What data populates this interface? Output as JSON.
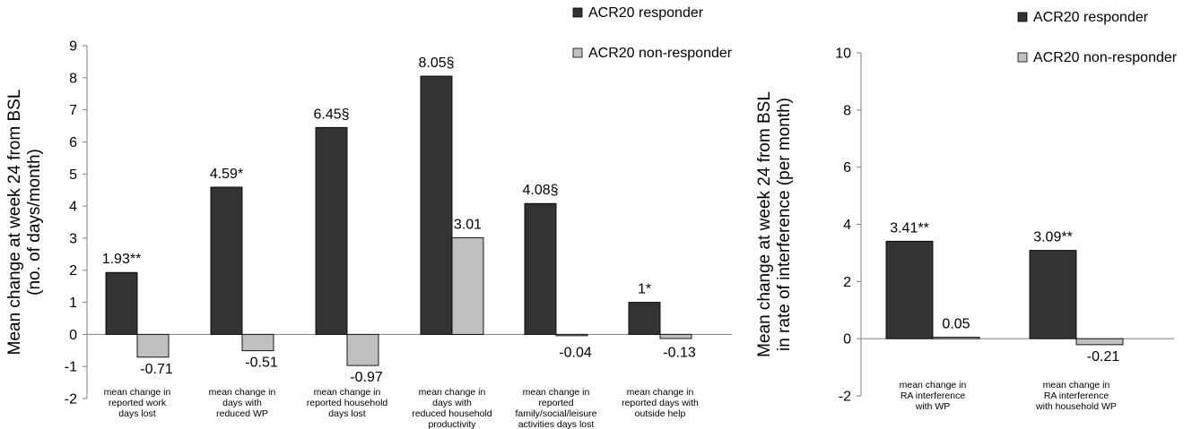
{
  "colors": {
    "responder": "#333333",
    "nonresponder": "#c0c0c0",
    "axis": "#7f7f7f"
  },
  "legend": {
    "responder": "ACR20 responder",
    "nonresponder": "ACR20 non-responder"
  },
  "chart_data": [
    {
      "type": "bar",
      "ylabel": [
        "Mean change at week 24 from BSL",
        "(no. of days/month)"
      ],
      "ylim": [
        -2,
        9
      ],
      "yticks": [
        -2,
        -1,
        0,
        1,
        2,
        3,
        4,
        5,
        6,
        7,
        8,
        9
      ],
      "grid": false,
      "legend_position": "top-right",
      "categories": [
        [
          "mean change in",
          "reported work",
          "days lost"
        ],
        [
          "mean change in",
          "days with",
          "reduced WP"
        ],
        [
          "mean change in",
          "reported household",
          "days lost"
        ],
        [
          "mean change in",
          "days with",
          "reduced household",
          "productivity"
        ],
        [
          "mean change in",
          "reported",
          "family/social/leisure",
          "activities days lost"
        ],
        [
          "mean change in",
          "reported days with",
          "outside help"
        ]
      ],
      "series": [
        {
          "name": "ACR20 responder",
          "values": [
            1.93,
            4.59,
            6.45,
            8.05,
            4.08,
            1
          ],
          "labels": [
            "1.93**",
            "4.59*",
            "6.45§",
            "8.05§",
            "4.08§",
            "1*"
          ]
        },
        {
          "name": "ACR20 non-responder",
          "values": [
            -0.71,
            -0.51,
            -0.97,
            3.01,
            -0.04,
            -0.13
          ],
          "labels": [
            "-0.71",
            "-0.51",
            "-0.97",
            "3.01",
            "-0.04",
            "-0.13"
          ]
        }
      ]
    },
    {
      "type": "bar",
      "ylabel": [
        "Mean change at week 24 from BSL",
        "in rate of interference (per month)"
      ],
      "ylim": [
        -2,
        10
      ],
      "yticks": [
        -2,
        0,
        2,
        4,
        6,
        8,
        10
      ],
      "grid": false,
      "legend_position": "top-right",
      "categories": [
        [
          "mean change in",
          "RA interference",
          "with WP"
        ],
        [
          "mean change in",
          "RA interference",
          "with household WP"
        ]
      ],
      "series": [
        {
          "name": "ACR20 responder",
          "values": [
            3.41,
            3.09
          ],
          "labels": [
            "3.41**",
            "3.09**"
          ]
        },
        {
          "name": "ACR20 non-responder",
          "values": [
            0.05,
            -0.21
          ],
          "labels": [
            "0.05",
            "-0.21"
          ]
        }
      ]
    }
  ]
}
